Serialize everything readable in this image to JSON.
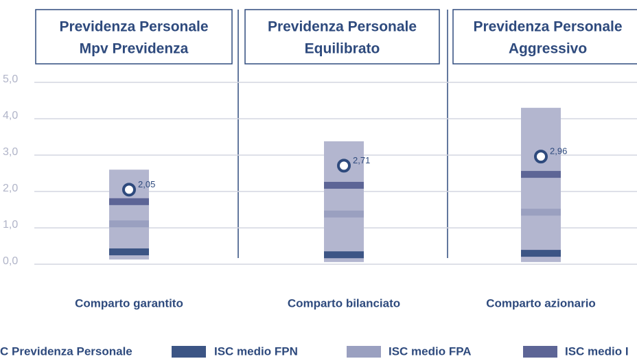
{
  "chart_data": {
    "type": "range",
    "headers": [
      [
        "Previdenza Personale",
        "Mpv Previdenza"
      ],
      [
        "Previdenza Personale",
        "Equilibrato"
      ],
      [
        "Previdenza Personale",
        "Aggressivo"
      ]
    ],
    "categories": [
      "Comparto garantito",
      "Comparto bilanciato",
      "Comparto azionario"
    ],
    "range_min": [
      0.13,
      0.06,
      0.06
    ],
    "range_max": [
      2.6,
      3.38,
      4.3
    ],
    "range_color": "#b3b6cf",
    "series": [
      {
        "name": "C Previdenza Personale",
        "color": "#2e4a7d",
        "marker": "circle",
        "values": [
          2.05,
          2.71,
          2.96
        ],
        "value_labels": [
          "2,05",
          "2,71",
          "2,96"
        ]
      },
      {
        "name": "ISC medio FPN",
        "color": "#3c5585",
        "marker": "bar",
        "values": [
          0.34,
          0.26,
          0.3
        ]
      },
      {
        "name": "ISC medio FPA",
        "color": "#9aa0c0",
        "marker": "bar",
        "values": [
          1.11,
          1.38,
          1.43
        ]
      },
      {
        "name": "ISC medio I",
        "color": "#5d6596",
        "marker": "bar",
        "values": [
          1.72,
          2.17,
          2.47
        ]
      }
    ],
    "ylim": [
      0,
      5
    ],
    "yticks": [
      {
        "value": 0,
        "label": "0,0"
      },
      {
        "value": 1,
        "label": "1,0"
      },
      {
        "value": 2,
        "label": "2,0"
      },
      {
        "value": 3,
        "label": "3,0"
      },
      {
        "value": 4,
        "label": "4,0"
      },
      {
        "value": 5,
        "label": "5,0"
      }
    ],
    "grid": true
  }
}
